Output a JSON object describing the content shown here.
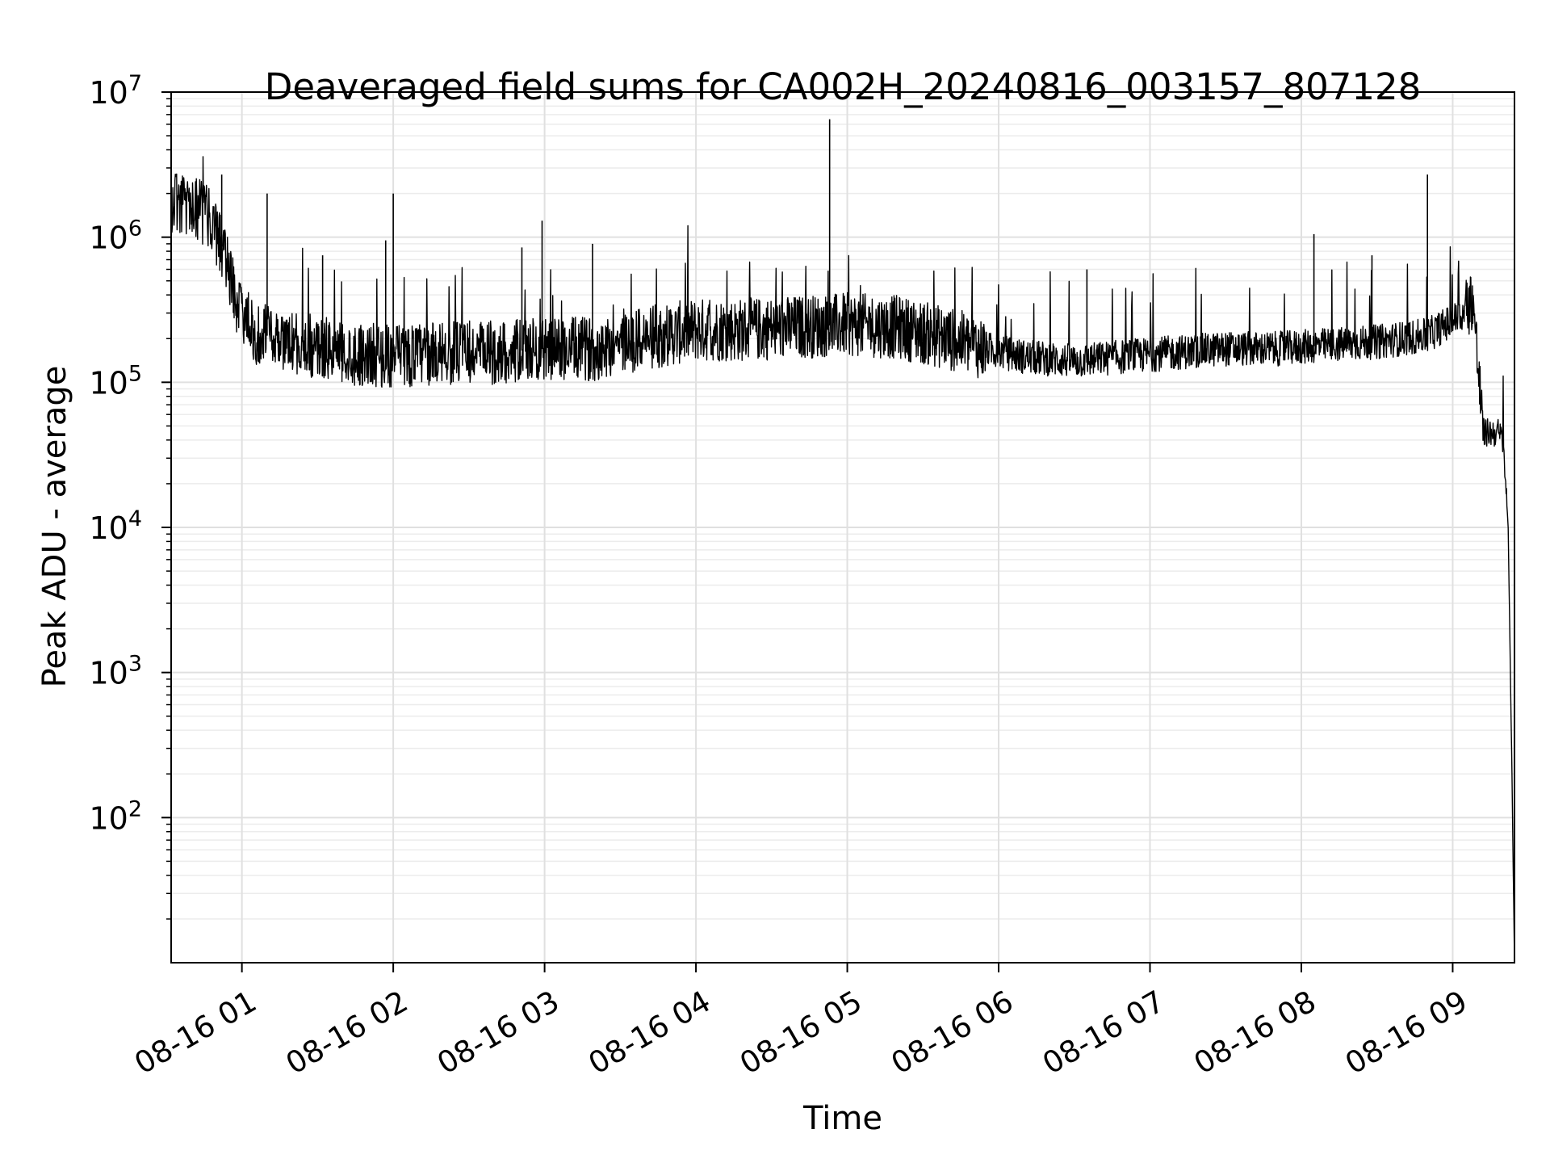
{
  "chart_data": {
    "type": "line",
    "title": "Deaveraged field sums for CA002H_20240816_003157_807128",
    "xlabel": "Time",
    "ylabel": "Peak ADU - average",
    "yscale": "log",
    "ylim": [
      10,
      10000000
    ],
    "xlim": [
      "08-16 00:31:57",
      "08-16 09:24:30"
    ],
    "grid": "on (major and minor)",
    "x_ticks": [
      "08-16 01",
      "08-16 02",
      "08-16 03",
      "08-16 04",
      "08-16 05",
      "08-16 06",
      "08-16 07",
      "08-16 08",
      "08-16 09"
    ],
    "y_ticks": [
      "10^2",
      "10^3",
      "10^4",
      "10^5",
      "10^6",
      "10^7"
    ],
    "series": [
      {
        "color": "#000000",
        "x": [
          "08-16 00:31:57",
          "08-16 00:40:00",
          "08-16 00:48:00",
          "08-16 00:54:00",
          "08-16 00:58:00",
          "08-16 01:05:00",
          "08-16 01:20:00",
          "08-16 01:40:00",
          "08-16 02:00:00",
          "08-16 02:20:00",
          "08-16 02:40:00",
          "08-16 03:00:00",
          "08-16 03:20:00",
          "08-16 03:40:00",
          "08-16 04:00:00",
          "08-16 04:20:00",
          "08-16 04:40:00",
          "08-16 05:00:00",
          "08-16 05:20:00",
          "08-16 05:40:00",
          "08-16 05:55:00",
          "08-16 06:10:00",
          "08-16 06:30:00",
          "08-16 06:50:00",
          "08-16 07:10:00",
          "08-16 07:30:00",
          "08-16 07:50:00",
          "08-16 08:10:00",
          "08-16 08:30:00",
          "08-16 08:50:00",
          "08-16 09:05:00",
          "08-16 09:08:00",
          "08-16 09:12:00",
          "08-16 09:18:00",
          "08-16 09:20:00",
          "08-16 09:22:00",
          "08-16 09:23:30",
          "08-16 09:24:30"
        ],
        "y": [
          1800000,
          1700000,
          1300000,
          700000,
          350000,
          220000,
          190000,
          160000,
          150000,
          160000,
          160000,
          170000,
          170000,
          200000,
          230000,
          230000,
          240000,
          250000,
          240000,
          200000,
          170000,
          150000,
          140000,
          150000,
          160000,
          170000,
          170000,
          180000,
          190000,
          210000,
          300000,
          390000,
          45000,
          45000,
          40000,
          10000,
          200,
          10
        ]
      }
    ],
    "spikes": [
      {
        "x": "08-16 04:53:00",
        "y": 6500000
      },
      {
        "x": "08-16 08:50:00",
        "y": 2700000
      },
      {
        "x": "08-16 00:52:00",
        "y": 2700000
      },
      {
        "x": "08-16 02:00:00",
        "y": 2000000
      },
      {
        "x": "08-16 01:10:00",
        "y": 2000000
      },
      {
        "x": "08-16 02:59:00",
        "y": 1300000
      },
      {
        "x": "08-16 08:05:00",
        "y": 1050000
      },
      {
        "x": "08-16 01:57:00",
        "y": 950000
      },
      {
        "x": "08-16 08:28:00",
        "y": 750000
      },
      {
        "x": "08-16 01:32:00",
        "y": 750000
      },
      {
        "x": "08-16 02:51:00",
        "y": 850000
      },
      {
        "x": "08-16 03:19:00",
        "y": 900000
      },
      {
        "x": "08-16 06:35:00",
        "y": 600000
      }
    ]
  }
}
